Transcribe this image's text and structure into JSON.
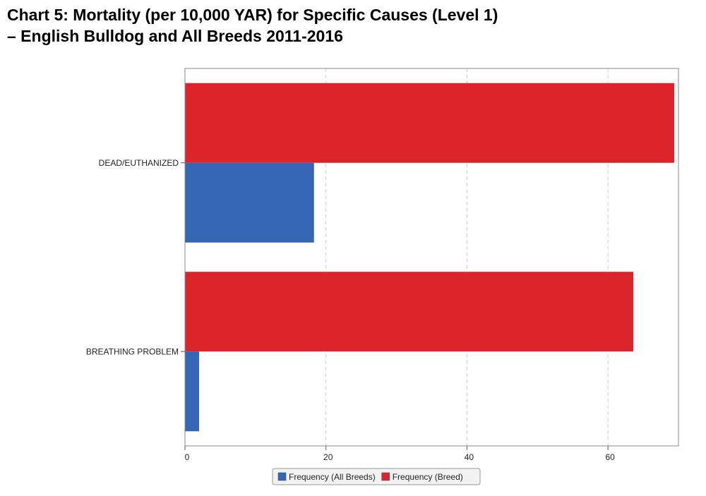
{
  "title": {
    "line1": "Chart 5: Mortality (per 10,000 YAR) for Specific Causes (Level 1)",
    "line2": " – English Bulldog and All Breeds 2011-2016"
  },
  "chart_data": {
    "type": "bar",
    "orientation": "horizontal",
    "title": "Chart 5: Mortality (per 10,000 YAR) for Specific Causes (Level 1) – English Bulldog and All Breeds 2011-2016",
    "categories": [
      "DEAD/EUTHANIZED",
      "BREATHING PROBLEM"
    ],
    "series": [
      {
        "name": "Frequency (Breed)",
        "color": "#dc252b",
        "values": [
          69.4,
          63.6
        ]
      },
      {
        "name": "Frequency (All Breeds)",
        "color": "#3565b5",
        "values": [
          18.3,
          2.0
        ]
      }
    ],
    "xlim": [
      0,
      70
    ],
    "xticks": [
      0,
      20,
      40,
      60
    ],
    "xtick_labels": [
      "0",
      "20",
      "40",
      "60"
    ],
    "grid": "vertical dashed",
    "legend": {
      "position": "bottom-center",
      "entries": [
        "Frequency (All Breeds)",
        "Frequency (Breed)"
      ]
    }
  }
}
